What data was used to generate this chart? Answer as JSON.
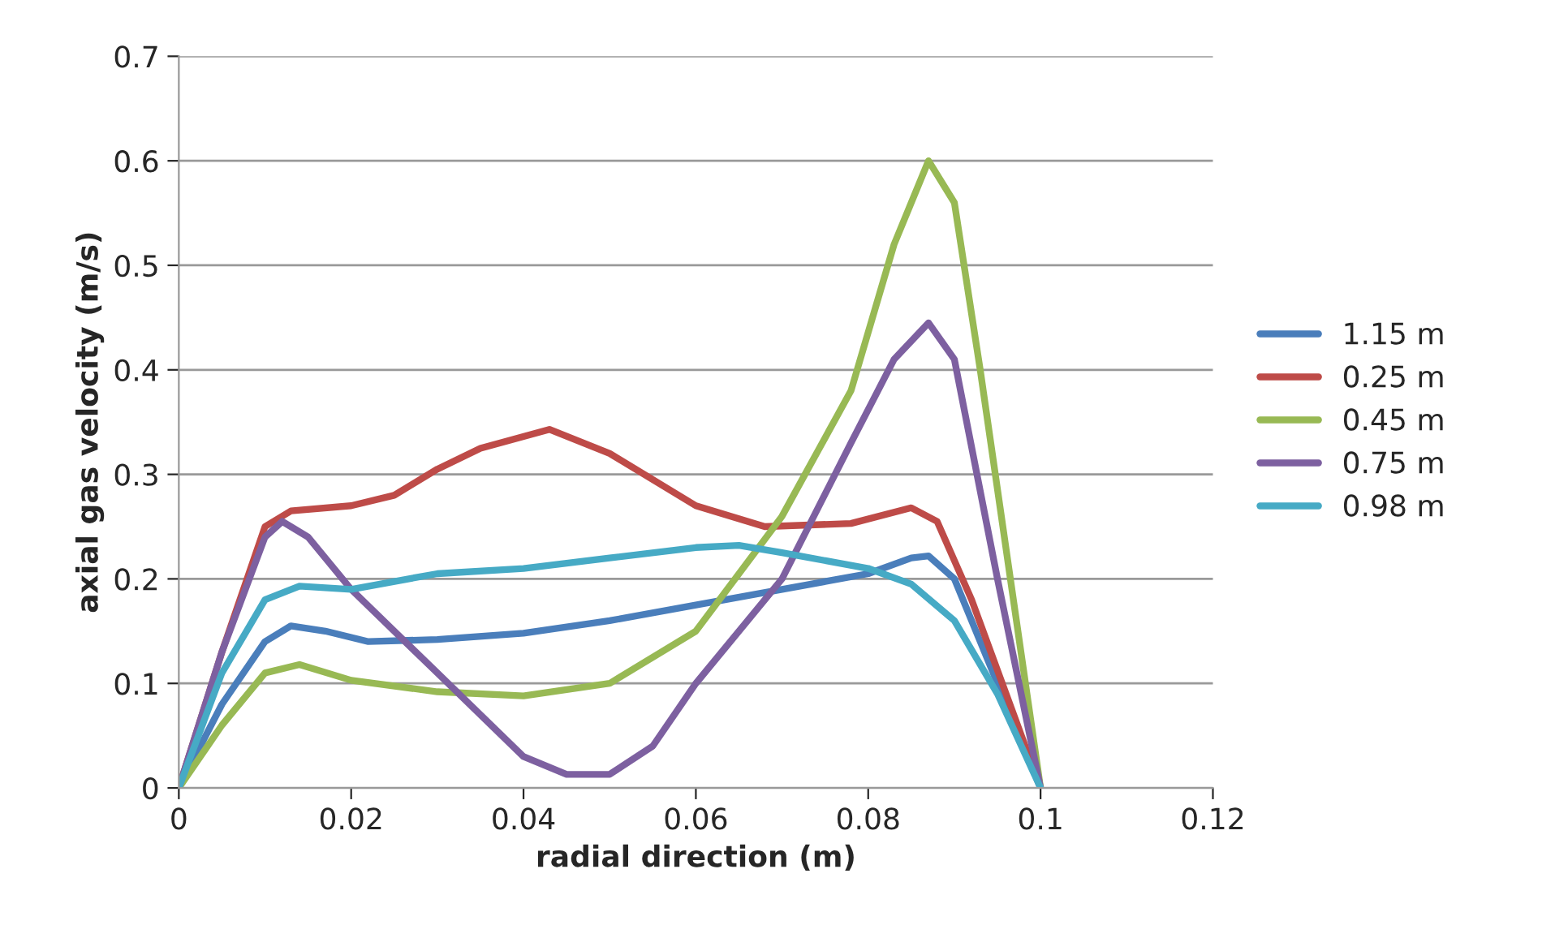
{
  "chart_data": {
    "type": "line",
    "xlabel": "radial direction (m)",
    "ylabel": "axial gas velocity (m/s)",
    "xlim": [
      0,
      0.12
    ],
    "xticks": [
      0,
      0.02,
      0.04,
      0.06,
      0.08,
      0.1,
      0.12
    ],
    "ylim": [
      0,
      0.7
    ],
    "yticks": [
      0,
      0.1,
      0.2,
      0.3,
      0.4,
      0.5,
      0.6,
      0.7
    ],
    "grid": "y",
    "legend": "right",
    "marker": "none",
    "line_style": "solid",
    "series": [
      {
        "name": "1.15 m",
        "color": "#4a7ebb",
        "x": [
          0,
          0.005,
          0.01,
          0.013,
          0.017,
          0.022,
          0.03,
          0.04,
          0.05,
          0.06,
          0.07,
          0.08,
          0.085,
          0.087,
          0.09,
          0.095,
          0.1
        ],
        "values": [
          0,
          0.08,
          0.14,
          0.155,
          0.15,
          0.14,
          0.142,
          0.148,
          0.16,
          0.175,
          0.19,
          0.205,
          0.22,
          0.222,
          0.2,
          0.1,
          0
        ]
      },
      {
        "name": "0.25 m",
        "color": "#be4b48",
        "x": [
          0,
          0.005,
          0.01,
          0.013,
          0.02,
          0.025,
          0.03,
          0.035,
          0.043,
          0.05,
          0.06,
          0.068,
          0.078,
          0.085,
          0.088,
          0.092,
          0.1
        ],
        "values": [
          0,
          0.13,
          0.25,
          0.265,
          0.27,
          0.28,
          0.305,
          0.325,
          0.343,
          0.32,
          0.27,
          0.25,
          0.253,
          0.268,
          0.255,
          0.18,
          0
        ]
      },
      {
        "name": "0.45 m",
        "color": "#98b954",
        "x": [
          0,
          0.005,
          0.01,
          0.014,
          0.02,
          0.03,
          0.04,
          0.05,
          0.06,
          0.07,
          0.078,
          0.083,
          0.087,
          0.09,
          0.093,
          0.1
        ],
        "values": [
          0,
          0.06,
          0.11,
          0.118,
          0.103,
          0.092,
          0.088,
          0.1,
          0.15,
          0.26,
          0.38,
          0.52,
          0.6,
          0.56,
          0.4,
          0
        ]
      },
      {
        "name": "0.75 m",
        "color": "#7d60a0",
        "x": [
          0,
          0.005,
          0.01,
          0.012,
          0.015,
          0.02,
          0.03,
          0.04,
          0.045,
          0.05,
          0.055,
          0.06,
          0.07,
          0.078,
          0.083,
          0.087,
          0.09,
          0.095,
          0.1
        ],
        "values": [
          0,
          0.13,
          0.24,
          0.255,
          0.24,
          0.19,
          0.11,
          0.03,
          0.013,
          0.013,
          0.04,
          0.1,
          0.2,
          0.33,
          0.41,
          0.445,
          0.41,
          0.2,
          0
        ]
      },
      {
        "name": "0.98 m",
        "color": "#46aac5",
        "x": [
          0,
          0.005,
          0.01,
          0.014,
          0.02,
          0.03,
          0.04,
          0.05,
          0.06,
          0.065,
          0.07,
          0.08,
          0.085,
          0.09,
          0.095,
          0.1
        ],
        "values": [
          0,
          0.11,
          0.18,
          0.193,
          0.19,
          0.205,
          0.21,
          0.22,
          0.23,
          0.232,
          0.225,
          0.21,
          0.195,
          0.16,
          0.09,
          0
        ]
      }
    ]
  }
}
